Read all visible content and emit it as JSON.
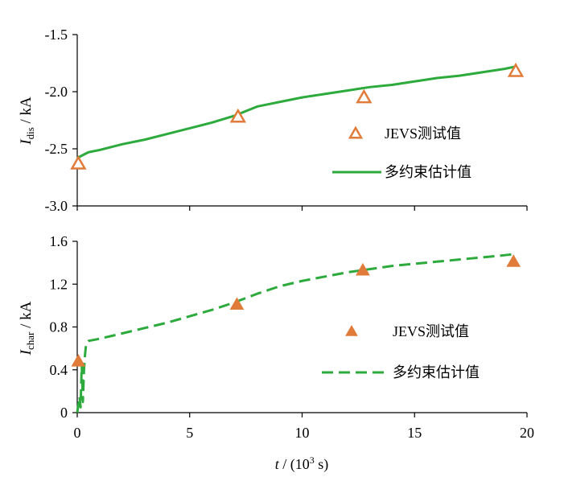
{
  "chart_data": [
    {
      "type": "scatter+line",
      "panel": "top",
      "ylabel_main": "I",
      "ylabel_sub": "dis",
      "ylabel_unit": " / kA",
      "xlim": [
        0,
        20
      ],
      "ylim": [
        -3.0,
        -1.5
      ],
      "yticks": [
        "-1.5",
        "-2.0",
        "-2.5",
        "-3.0"
      ],
      "ytick_values": [
        -1.5,
        -2.0,
        -2.5,
        -3.0
      ],
      "legend_position": "center-right",
      "colors": {
        "measured": "#E07B39",
        "estimate": "#2DAA3C"
      },
      "series": [
        {
          "name": "JEVS测试值",
          "marker": "open-triangle",
          "x": [
            0.05,
            7.15,
            12.75,
            19.5
          ],
          "y": [
            -2.63,
            -2.22,
            -2.05,
            -1.82
          ]
        },
        {
          "name": "多约束估计值",
          "style": "solid",
          "x": [
            0,
            0.5,
            1,
            2,
            3,
            4,
            5,
            6,
            6.5,
            7,
            7.5,
            8,
            9,
            10,
            11,
            12,
            13,
            14,
            15,
            16,
            17,
            18,
            19,
            19.5
          ],
          "y": [
            -2.58,
            -2.53,
            -2.51,
            -2.46,
            -2.42,
            -2.37,
            -2.32,
            -2.27,
            -2.24,
            -2.21,
            -2.17,
            -2.13,
            -2.09,
            -2.05,
            -2.02,
            -1.99,
            -1.96,
            -1.94,
            -1.91,
            -1.88,
            -1.86,
            -1.83,
            -1.8,
            -1.78
          ]
        }
      ]
    },
    {
      "type": "scatter+line",
      "panel": "bottom",
      "ylabel_main": "I",
      "ylabel_sub": "char",
      "ylabel_unit": " / kA",
      "xlabel_main": "t",
      "xlabel_rest": " / (10",
      "xlabel_sup": "3",
      "xlabel_end": " s)",
      "xlim": [
        0,
        20
      ],
      "ylim": [
        0,
        1.6
      ],
      "xticks": [
        "0",
        "5",
        "10",
        "15",
        "20"
      ],
      "xtick_values": [
        0,
        5,
        10,
        15,
        20
      ],
      "yticks": [
        "1.6",
        "1.2",
        "0.8",
        "0.4",
        "0"
      ],
      "ytick_values": [
        1.6,
        1.2,
        0.8,
        0.4,
        0
      ],
      "legend_position": "center-right",
      "colors": {
        "measured": "#E07B39",
        "estimate": "#2DAA3C"
      },
      "series": [
        {
          "name": "JEVS测试值",
          "marker": "filled-triangle",
          "x": [
            0.05,
            7.1,
            12.7,
            19.4
          ],
          "y": [
            0.48,
            1.01,
            1.33,
            1.41
          ]
        },
        {
          "name": "多约束估计值",
          "style": "dashed",
          "x": [
            0,
            0.1,
            0.15,
            0.2,
            0.25,
            0.3,
            0.35,
            0.4,
            0.5,
            1,
            2,
            3,
            4,
            5,
            6,
            7,
            8,
            9,
            10,
            11,
            12,
            13,
            14,
            15,
            16,
            17,
            18,
            19,
            19.4
          ],
          "y": [
            0,
            0.15,
            0.05,
            0.45,
            0.1,
            0.4,
            0.55,
            0.65,
            0.67,
            0.69,
            0.74,
            0.79,
            0.84,
            0.9,
            0.96,
            1.03,
            1.11,
            1.18,
            1.23,
            1.27,
            1.31,
            1.34,
            1.37,
            1.39,
            1.41,
            1.43,
            1.45,
            1.47,
            1.48
          ]
        }
      ]
    }
  ]
}
